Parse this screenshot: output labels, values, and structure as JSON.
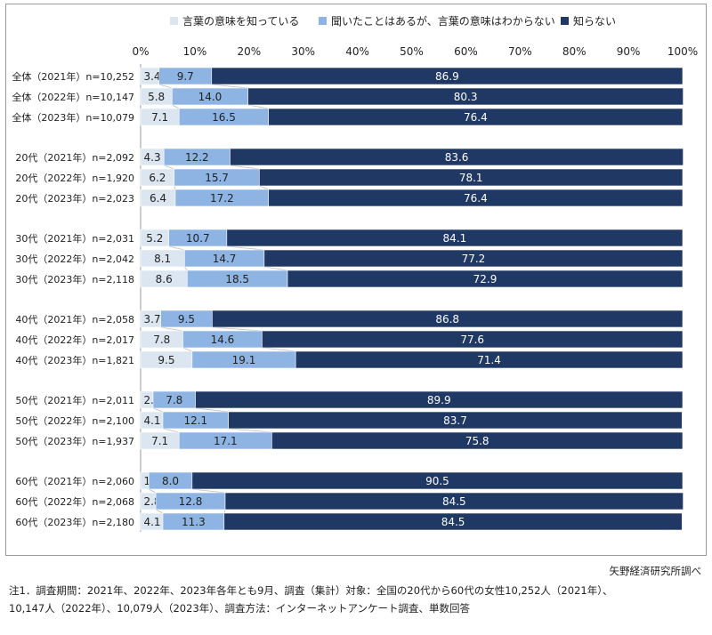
{
  "chart_data": {
    "type": "bar",
    "orientation": "horizontal",
    "stacked": "percent",
    "legend_placement": "top",
    "xlim": [
      0,
      100
    ],
    "xticks": [
      "0%",
      "10%",
      "20%",
      "30%",
      "40%",
      "50%",
      "60%",
      "70%",
      "80%",
      "90%",
      "100%"
    ],
    "categories": [
      "全体（2021年）n=10,252",
      "全体（2022年）n=10,147",
      "全体（2023年）n=10,079",
      "20代（2021年）n=2,092",
      "20代（2022年）n=1,920",
      "20代（2023年）n=2,023",
      "30代（2021年）n=2,031",
      "30代（2022年）n=2,042",
      "30代（2023年）n=2,118",
      "40代（2021年）n=2,058",
      "40代（2022年）n=2,017",
      "40代（2023年）n=1,821",
      "50代（2021年）n=2,011",
      "50代（2022年）n=2,100",
      "50代（2023年）n=1,937",
      "60代（2021年）n=2,060",
      "60代（2022年）n=2,068",
      "60代（2023年）n=2,180"
    ],
    "series": [
      {
        "name": "言葉の意味を知っている",
        "color": "#dce6f1",
        "values": [
          3.4,
          5.8,
          7.1,
          4.3,
          6.2,
          6.4,
          5.2,
          8.1,
          8.6,
          3.7,
          7.8,
          9.5,
          2.3,
          4.1,
          7.1,
          1.5,
          2.8,
          4.1
        ]
      },
      {
        "name": "聞いたことはあるが、言葉の意味はわからない",
        "color": "#8eb4e3",
        "values": [
          9.7,
          14.0,
          16.5,
          12.2,
          15.7,
          17.2,
          10.7,
          14.7,
          18.5,
          9.5,
          14.6,
          19.1,
          7.8,
          12.1,
          17.1,
          8.0,
          12.8,
          11.3
        ]
      },
      {
        "name": "知らない",
        "color": "#1f3864",
        "values": [
          86.9,
          80.3,
          76.4,
          83.6,
          78.1,
          76.4,
          84.1,
          77.2,
          72.9,
          86.8,
          77.6,
          71.4,
          89.9,
          83.7,
          75.8,
          90.5,
          84.5,
          84.5
        ]
      }
    ]
  },
  "source": "矢野経済研究所調べ",
  "note_line1": "注1．調査期間：2021年、2022年、2023年各年とも9月、調査（集計）対象：全国の20代から60代の女性10,252人（2021年）、",
  "note_line2": "10,147人（2022年）、10,079人（2023年）、調査方法：インターネットアンケート調査、単数回答"
}
